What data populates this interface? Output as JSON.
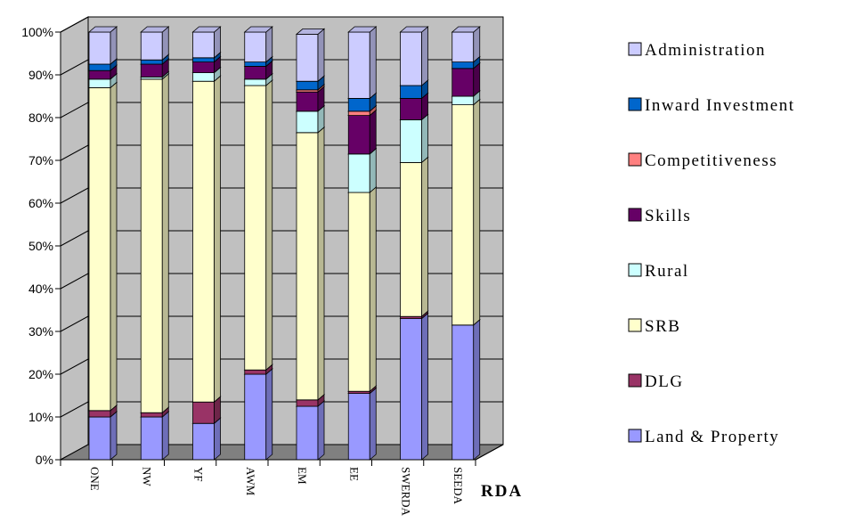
{
  "chart_data": {
    "type": "bar",
    "stacked": true,
    "percent_stacked": true,
    "three_d": true,
    "xlabel": "RDA",
    "ylabel": "",
    "ylim": [
      0,
      100
    ],
    "y_ticks": [
      "0%",
      "10%",
      "20%",
      "30%",
      "40%",
      "50%",
      "60%",
      "70%",
      "80%",
      "90%",
      "100%"
    ],
    "grid": true,
    "legend_position": "right",
    "categories": [
      "ONE",
      "NW",
      "YF",
      "AWM",
      "EM",
      "EE",
      "SWERDA",
      "SEEDA"
    ],
    "series": [
      {
        "name": "Land & Property",
        "color": "#9999ff",
        "values": [
          10,
          10,
          8.5,
          20,
          12.5,
          15.5,
          33,
          31.5
        ]
      },
      {
        "name": "DLG",
        "color": "#993366",
        "values": [
          1.5,
          1,
          5,
          1,
          1.5,
          0.5,
          0.5,
          0
        ]
      },
      {
        "name": "SRB",
        "color": "#ffffcc",
        "values": [
          75.5,
          78,
          75,
          66.5,
          62.5,
          46.5,
          36,
          51.5
        ]
      },
      {
        "name": "Rural",
        "color": "#ccffff",
        "values": [
          2,
          0.5,
          2,
          1.5,
          5,
          9,
          10,
          2
        ]
      },
      {
        "name": "Skills",
        "color": "#660066",
        "values": [
          2,
          3,
          2.5,
          3,
          4.5,
          9,
          5,
          6.5
        ]
      },
      {
        "name": "Competitiveness",
        "color": "#ff8080",
        "values": [
          0,
          0,
          0,
          0,
          0.5,
          1,
          0,
          0
        ]
      },
      {
        "name": "Inward Investment",
        "color": "#0066cc",
        "values": [
          1.5,
          1,
          1,
          1,
          2,
          3,
          3,
          1.5
        ]
      },
      {
        "name": "Administration",
        "color": "#ccccff",
        "values": [
          7.5,
          6.5,
          6,
          7,
          11,
          15.5,
          12.5,
          7
        ]
      }
    ],
    "colors": {
      "wall": "#c0c0c0",
      "floor": "#808080",
      "gridline": "#000000"
    }
  }
}
